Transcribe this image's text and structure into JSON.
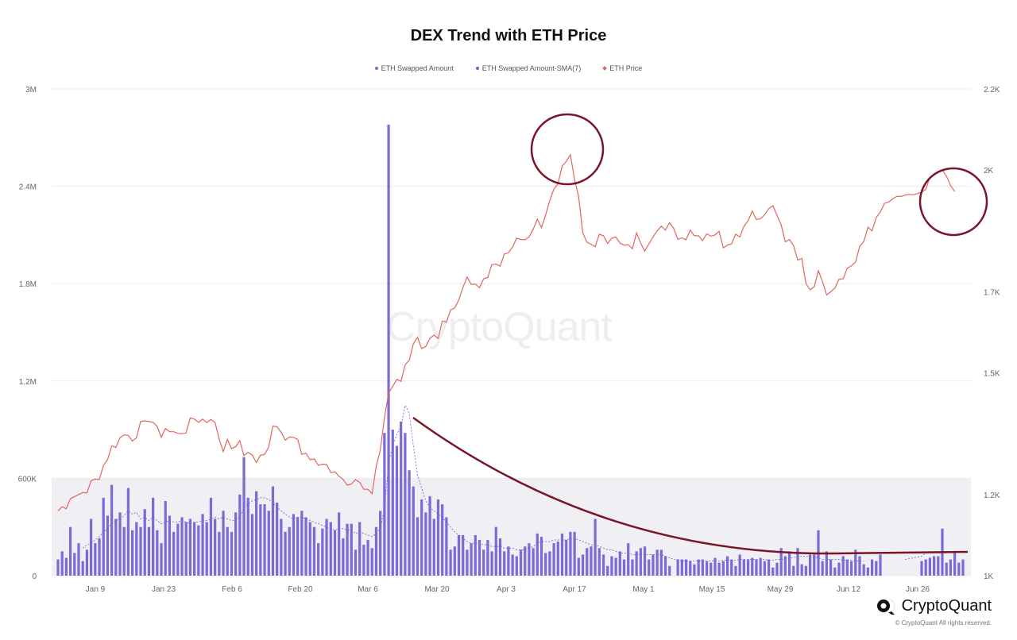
{
  "chart_data": {
    "type": "bar+line",
    "title": "DEX Trend with ETH Price",
    "legend": {
      "items": [
        {
          "name": "ETH Swapped Amount",
          "color": "#7b6bd6",
          "marker": "circle"
        },
        {
          "name": "ETH Swapped Amount-SMA(7)",
          "color": "#6b5fd0",
          "marker": "circle"
        },
        {
          "name": "ETH Price",
          "color": "#e0665f",
          "marker": "diamond"
        }
      ],
      "position": "top-center"
    },
    "x_ticks": [
      "Jan 9",
      "Jan 23",
      "Feb 6",
      "Feb 20",
      "Mar 6",
      "Mar 20",
      "Apr 3",
      "Apr 17",
      "May 1",
      "May 15",
      "May 29",
      "Jun 12",
      "Jun 26"
    ],
    "y_left": {
      "range": [
        0,
        3000000
      ],
      "ticks": [
        {
          "value": 0,
          "label": "0"
        },
        {
          "value": 600000,
          "label": "600K"
        },
        {
          "value": 1200000,
          "label": "1.2M"
        },
        {
          "value": 1800000,
          "label": "1.8M"
        },
        {
          "value": 2400000,
          "label": "2.4M"
        },
        {
          "value": 3000000,
          "label": "3M"
        }
      ]
    },
    "y_right": {
      "range": [
        1000,
        2200
      ],
      "ticks": [
        {
          "value": 1000,
          "label": "1K"
        },
        {
          "value": 1200,
          "label": "1.2K"
        },
        {
          "value": 1500,
          "label": "1.5K"
        },
        {
          "value": 1700,
          "label": "1.7K"
        },
        {
          "value": 2000,
          "label": "2K"
        },
        {
          "value": 2200,
          "label": "2.2K"
        }
      ]
    },
    "highlight_band_left": [
      0,
      600000
    ],
    "swapped_amount": [
      100000,
      150000,
      110000,
      300000,
      140000,
      200000,
      90000,
      160000,
      350000,
      200000,
      230000,
      480000,
      370000,
      560000,
      350000,
      390000,
      300000,
      540000,
      280000,
      330000,
      300000,
      410000,
      300000,
      480000,
      280000,
      200000,
      460000,
      370000,
      270000,
      320000,
      360000,
      330000,
      350000,
      330000,
      310000,
      380000,
      330000,
      480000,
      350000,
      270000,
      400000,
      300000,
      270000,
      390000,
      500000,
      730000,
      480000,
      380000,
      520000,
      440000,
      440000,
      400000,
      550000,
      450000,
      350000,
      270000,
      300000,
      380000,
      360000,
      400000,
      360000,
      330000,
      300000,
      200000,
      290000,
      350000,
      330000,
      280000,
      390000,
      230000,
      320000,
      320000,
      160000,
      330000,
      190000,
      220000,
      170000,
      300000,
      400000,
      880000,
      2780000,
      900000,
      800000,
      950000,
      880000,
      650000,
      550000,
      360000,
      470000,
      390000,
      490000,
      350000,
      470000,
      440000,
      360000,
      160000,
      180000,
      250000,
      250000,
      160000,
      200000,
      250000,
      220000,
      160000,
      220000,
      150000,
      300000,
      230000,
      150000,
      180000,
      130000,
      120000,
      160000,
      180000,
      200000,
      170000,
      260000,
      240000,
      140000,
      150000,
      200000,
      210000,
      260000,
      220000,
      270000,
      270000,
      110000,
      130000,
      170000,
      180000,
      350000,
      170000,
      130000,
      60000,
      120000,
      110000,
      150000,
      100000,
      200000,
      100000,
      150000,
      170000,
      180000,
      100000,
      130000,
      160000,
      160000,
      120000,
      60000,
      0,
      100000,
      100000,
      100000,
      90000,
      70000,
      100000,
      100000,
      90000,
      80000,
      110000,
      80000,
      90000,
      120000,
      100000,
      60000,
      130000,
      100000,
      100000,
      110000,
      100000,
      110000,
      90000,
      100000,
      50000,
      80000,
      170000,
      120000,
      150000,
      60000,
      170000,
      70000,
      60000,
      130000,
      130000,
      280000,
      90000,
      150000,
      100000,
      50000,
      80000,
      120000,
      100000,
      90000,
      160000,
      120000,
      70000,
      50000,
      100000,
      90000,
      130000,
      0,
      0,
      0,
      0,
      0,
      0,
      0,
      0,
      0,
      90000,
      100000,
      110000,
      120000,
      120000,
      290000,
      80000,
      100000,
      150000,
      80000,
      100000
    ],
    "sma7": [
      null,
      null,
      null,
      null,
      null,
      null,
      170000,
      190000,
      200000,
      220000,
      240000,
      270000,
      290000,
      320000,
      340000,
      350000,
      370000,
      400000,
      380000,
      390000,
      350000,
      360000,
      340000,
      360000,
      340000,
      320000,
      330000,
      340000,
      330000,
      330000,
      340000,
      330000,
      320000,
      330000,
      330000,
      340000,
      340000,
      350000,
      360000,
      350000,
      360000,
      350000,
      340000,
      340000,
      360000,
      420000,
      440000,
      460000,
      470000,
      480000,
      480000,
      470000,
      450000,
      420000,
      400000,
      380000,
      360000,
      350000,
      360000,
      360000,
      350000,
      340000,
      330000,
      320000,
      310000,
      300000,
      290000,
      280000,
      290000,
      290000,
      280000,
      280000,
      260000,
      270000,
      260000,
      250000,
      240000,
      260000,
      290000,
      410000,
      700000,
      800000,
      870000,
      920000,
      1050000,
      1000000,
      800000,
      620000,
      540000,
      460000,
      420000,
      400000,
      380000,
      360000,
      330000,
      300000,
      270000,
      250000,
      230000,
      210000,
      200000,
      200000,
      200000,
      190000,
      190000,
      180000,
      180000,
      180000,
      170000,
      170000,
      170000,
      160000,
      160000,
      160000,
      170000,
      180000,
      200000,
      210000,
      210000,
      210000,
      220000,
      220000,
      220000,
      220000,
      230000,
      230000,
      220000,
      210000,
      200000,
      190000,
      190000,
      180000,
      170000,
      160000,
      160000,
      150000,
      140000,
      140000,
      140000,
      130000,
      130000,
      130000,
      130000,
      130000,
      130000,
      130000,
      130000,
      120000,
      110000,
      100000,
      100000,
      90000,
      90000,
      90000,
      90000,
      90000,
      90000,
      90000,
      90000,
      90000,
      90000,
      95000,
      95000,
      95000,
      95000,
      100000,
      100000,
      100000,
      100000,
      100000,
      100000,
      100000,
      95000,
      95000,
      100000,
      100000,
      105000,
      110000,
      110000,
      120000,
      120000,
      120000,
      120000,
      115000,
      110000,
      100000,
      100000,
      100000,
      100000,
      100000,
      95000,
      95000,
      95000,
      90000,
      90000,
      90000,
      null,
      null,
      null,
      null,
      null,
      null,
      null,
      null,
      null,
      100000,
      105000,
      110000,
      115000,
      120000,
      140000,
      140000,
      140000,
      140000,
      140000,
      140000
    ],
    "eth_price": [
      1160,
      1170,
      1165,
      1190,
      1195,
      1200,
      1205,
      1204,
      1234,
      1238,
      1237,
      1272,
      1286,
      1320,
      1316,
      1340,
      1347,
      1346,
      1332,
      1340,
      1380,
      1382,
      1380,
      1378,
      1368,
      1341,
      1363,
      1355,
      1355,
      1351,
      1350,
      1352,
      1389,
      1386,
      1378,
      1386,
      1377,
      1385,
      1378,
      1337,
      1306,
      1336,
      1313,
      1318,
      1333,
      1296,
      1304,
      1298,
      1279,
      1297,
      1299,
      1317,
      1369,
      1367,
      1354,
      1334,
      1342,
      1341,
      1336,
      1299,
      1302,
      1286,
      1288,
      1272,
      1275,
      1274,
      1254,
      1256,
      1245,
      1237,
      1223,
      1226,
      1237,
      1230,
      1213,
      1213,
      1202,
      1270,
      1310,
      1390,
      1450,
      1467,
      1484,
      1479,
      1520,
      1531,
      1572,
      1587,
      1560,
      1565,
      1585,
      1593,
      1585,
      1628,
      1625,
      1655,
      1660,
      1680,
      1711,
      1736,
      1718,
      1719,
      1710,
      1732,
      1735,
      1767,
      1768,
      1763,
      1793,
      1796,
      1810,
      1832,
      1829,
      1828,
      1835,
      1854,
      1879,
      1858,
      1889,
      1925,
      1953,
      1966,
      2010,
      2021,
      2038,
      1977,
      1934,
      1845,
      1822,
      1817,
      1811,
      1842,
      1838,
      1819,
      1832,
      1835,
      1820,
      1815,
      1816,
      1806,
      1845,
      1820,
      1800,
      1818,
      1835,
      1850,
      1862,
      1852,
      1870,
      1856,
      1829,
      1833,
      1828,
      1852,
      1838,
      1838,
      1826,
      1843,
      1837,
      1840,
      1849,
      1808,
      1815,
      1818,
      1842,
      1835,
      1862,
      1875,
      1899,
      1878,
      1880,
      1890,
      1905,
      1912,
      1888,
      1865,
      1823,
      1829,
      1814,
      1778,
      1782,
      1720,
      1705,
      1712,
      1752,
      1725,
      1692,
      1700,
      1709,
      1731,
      1732,
      1758,
      1764,
      1773,
      1812,
      1824,
      1859,
      1850,
      1883,
      1897,
      1918,
      1921,
      1929,
      1935,
      1935,
      1938,
      1940,
      1939,
      1942,
      1946,
      1952,
      1983,
      1988,
      1995,
      2000,
      1985,
      1962,
      1947
    ]
  },
  "annotations": [
    {
      "type": "circle",
      "label": ""
    },
    {
      "type": "circle",
      "label": ""
    },
    {
      "type": "trend-curve",
      "label": ""
    }
  ],
  "watermark": {
    "text": "CryptoQuant"
  },
  "brand": {
    "name": "CryptoQuant",
    "copyright": "© CryptoQuant All rights reserved."
  },
  "colors": {
    "bar": "#7b6bd6",
    "sma": "#6b5fd0",
    "price": "#e0665f",
    "annotation": "#7a1428",
    "band": "#f0eff3",
    "grid": "#ececec"
  }
}
